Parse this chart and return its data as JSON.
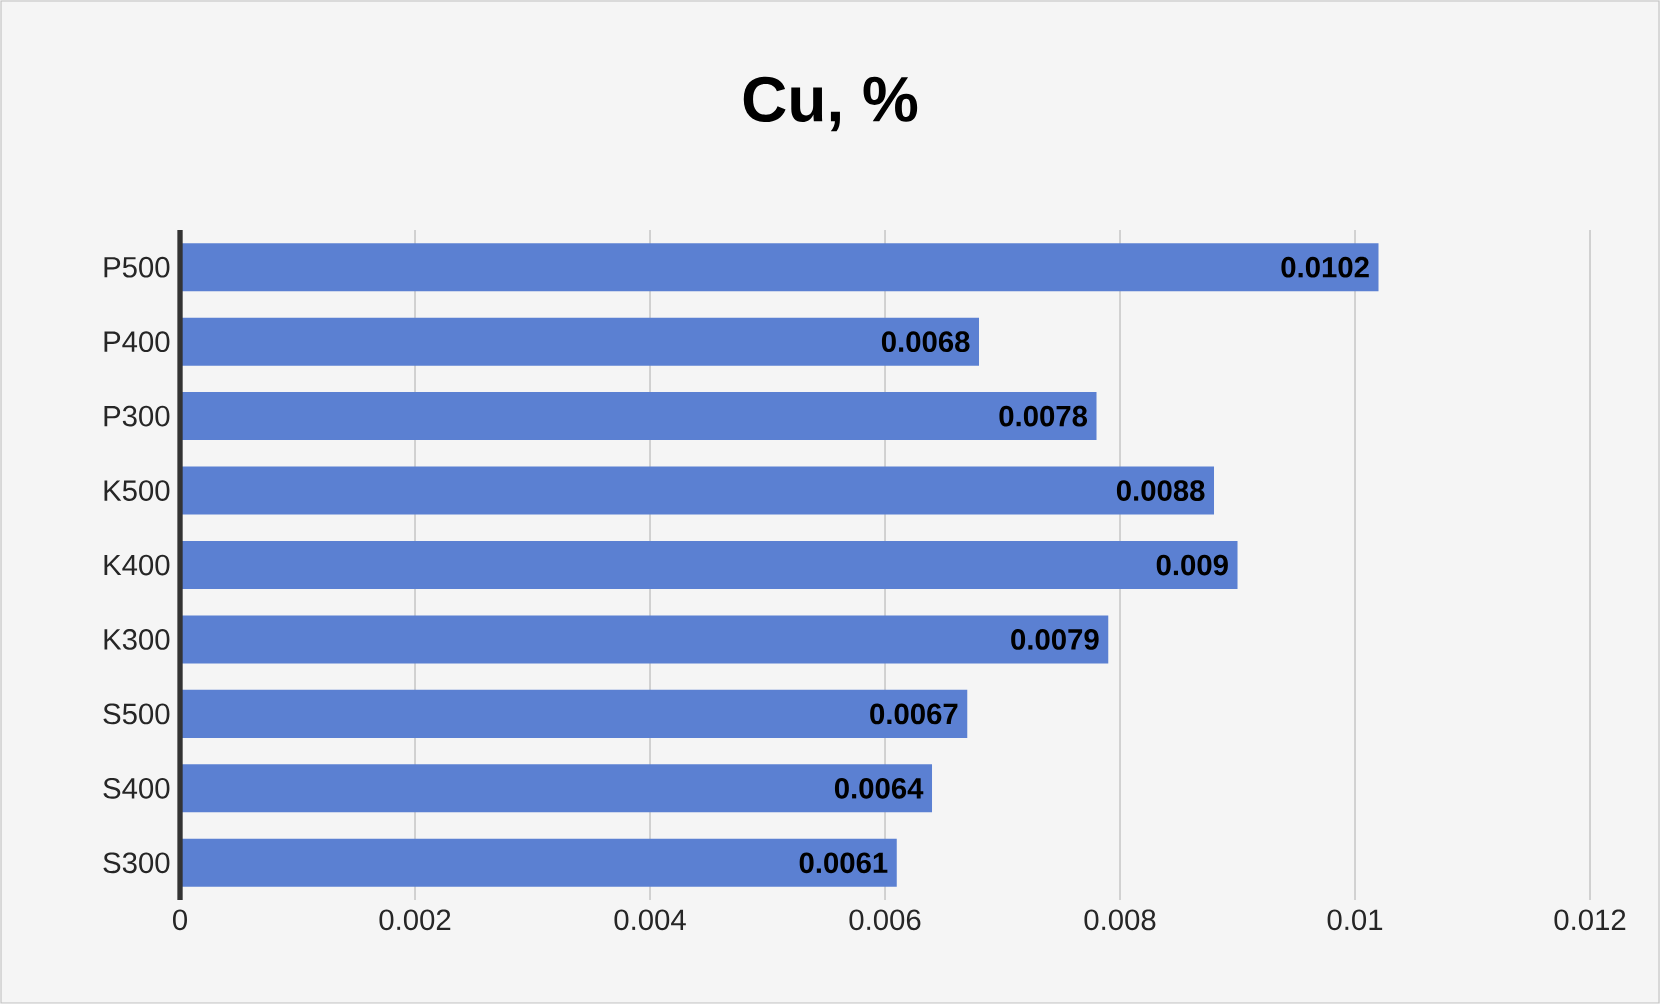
{
  "chart_data": {
    "type": "bar",
    "orientation": "horizontal",
    "title": "Cu, %",
    "categories": [
      "P500",
      "P400",
      "P300",
      "K500",
      "K400",
      "K300",
      "S500",
      "S400",
      "S300"
    ],
    "values": [
      0.0102,
      0.0068,
      0.0078,
      0.0088,
      0.009,
      0.0079,
      0.0067,
      0.0064,
      0.0061
    ],
    "color": "#5b80d2",
    "data_labels": true,
    "grid": "x",
    "xlim": [
      0,
      0.012
    ],
    "xticks": [
      0,
      0.002,
      0.004,
      0.006,
      0.008,
      0.01,
      0.012
    ]
  }
}
